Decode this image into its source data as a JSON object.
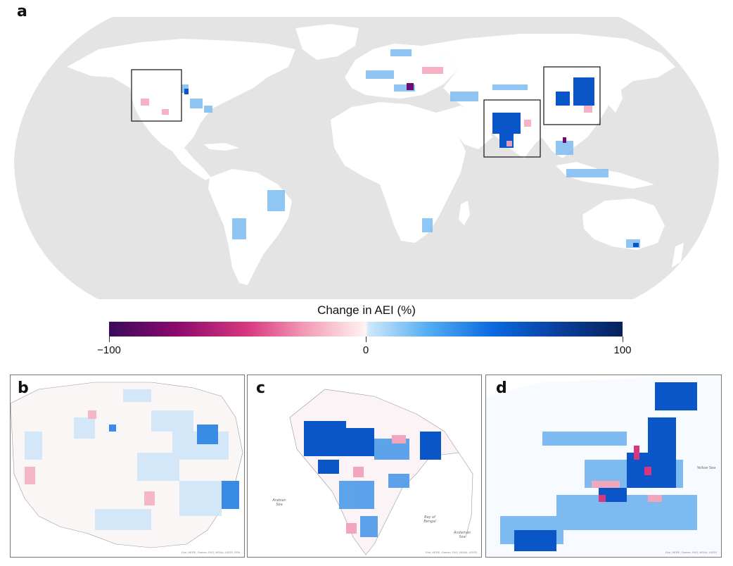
{
  "panels": {
    "a": {
      "letter": "a"
    },
    "b": {
      "letter": "b",
      "attribution": "Esri, HERE, Garmin, FAO, NOAA, USGS, EPA"
    },
    "c": {
      "letter": "c",
      "attribution": "Esri, HERE, Garmin, FAO, NOAA, USGS",
      "sea_labels": [
        "Arabian Sea",
        "Bay of Bengal",
        "Andaman Sea"
      ]
    },
    "d": {
      "letter": "d",
      "attribution": "Esri, HERE, Garmin, FAO, NOAA, USGS",
      "sea_labels": [
        "Yellow Sea"
      ]
    }
  },
  "colorbar": {
    "title": "Change in AEI (%)",
    "min": -100,
    "max": 100,
    "ticks": [
      {
        "value": -100,
        "label": "−100"
      },
      {
        "value": 0,
        "label": "0"
      },
      {
        "value": 100,
        "label": "100"
      }
    ],
    "colors": {
      "neg_extreme": "#3a0b5c",
      "neg_mid": "#d8377f",
      "neg_low": "#fbd7dd",
      "pos_low": "#cfe8fb",
      "pos_mid": "#0a68e0",
      "pos_extreme": "#05225c"
    }
  },
  "map_colors": {
    "ocean": "#e4e4e4",
    "land": "#ffffff",
    "inset_box": "#111111"
  }
}
